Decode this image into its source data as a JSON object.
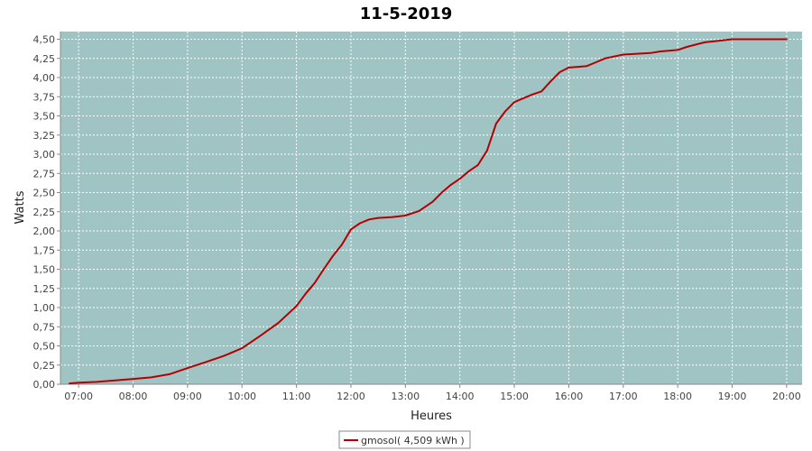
{
  "colors": {
    "plot_background": "#9fc4c3",
    "series_line": "#b40000",
    "gridline": "#ffffff",
    "axis": "#888888"
  },
  "chart_data": {
    "type": "line",
    "title": "11-5-2019",
    "xlabel": "Heures",
    "ylabel": "Watts",
    "ylim": [
      0,
      4.6
    ],
    "xlim": [
      "06:40",
      "20:17"
    ],
    "grid": true,
    "legend_position": "bottom",
    "x_ticks": [
      "07:00",
      "08:00",
      "09:00",
      "10:00",
      "11:00",
      "12:00",
      "13:00",
      "14:00",
      "15:00",
      "16:00",
      "17:00",
      "18:00",
      "19:00",
      "20:00"
    ],
    "y_ticks": [
      "0,00",
      "0,25",
      "0,50",
      "0,75",
      "1,00",
      "1,25",
      "1,50",
      "1,75",
      "2,00",
      "2,25",
      "2,50",
      "2,75",
      "3,00",
      "3,25",
      "3,50",
      "3,75",
      "4,00",
      "4,25",
      "4,50"
    ],
    "series": [
      {
        "name": "gmosol( 4,509 kWh )",
        "x": [
          "06:50",
          "07:00",
          "07:20",
          "07:40",
          "08:00",
          "08:20",
          "08:40",
          "09:00",
          "09:20",
          "09:40",
          "10:00",
          "10:20",
          "10:40",
          "11:00",
          "11:10",
          "11:20",
          "11:30",
          "11:40",
          "11:50",
          "12:00",
          "12:10",
          "12:20",
          "12:30",
          "12:45",
          "13:00",
          "13:15",
          "13:30",
          "13:40",
          "13:50",
          "14:00",
          "14:10",
          "14:20",
          "14:30",
          "14:40",
          "14:50",
          "15:00",
          "15:10",
          "15:20",
          "15:30",
          "15:40",
          "15:50",
          "16:00",
          "16:10",
          "16:20",
          "16:30",
          "16:40",
          "17:00",
          "17:15",
          "17:30",
          "17:40",
          "17:50",
          "18:00",
          "18:10",
          "18:20",
          "18:30",
          "18:45",
          "19:00",
          "19:20",
          "19:40",
          "20:00"
        ],
        "values": [
          0.01,
          0.02,
          0.03,
          0.05,
          0.07,
          0.09,
          0.13,
          0.21,
          0.29,
          0.37,
          0.47,
          0.63,
          0.8,
          1.02,
          1.18,
          1.32,
          1.5,
          1.67,
          1.82,
          2.02,
          2.1,
          2.15,
          2.17,
          2.18,
          2.2,
          2.26,
          2.38,
          2.5,
          2.6,
          2.68,
          2.78,
          2.86,
          3.05,
          3.4,
          3.56,
          3.68,
          3.73,
          3.78,
          3.82,
          3.95,
          4.07,
          4.13,
          4.14,
          4.15,
          4.2,
          4.25,
          4.3,
          4.31,
          4.32,
          4.34,
          4.35,
          4.36,
          4.4,
          4.43,
          4.46,
          4.48,
          4.5,
          4.5,
          4.5,
          4.5
        ]
      }
    ]
  }
}
